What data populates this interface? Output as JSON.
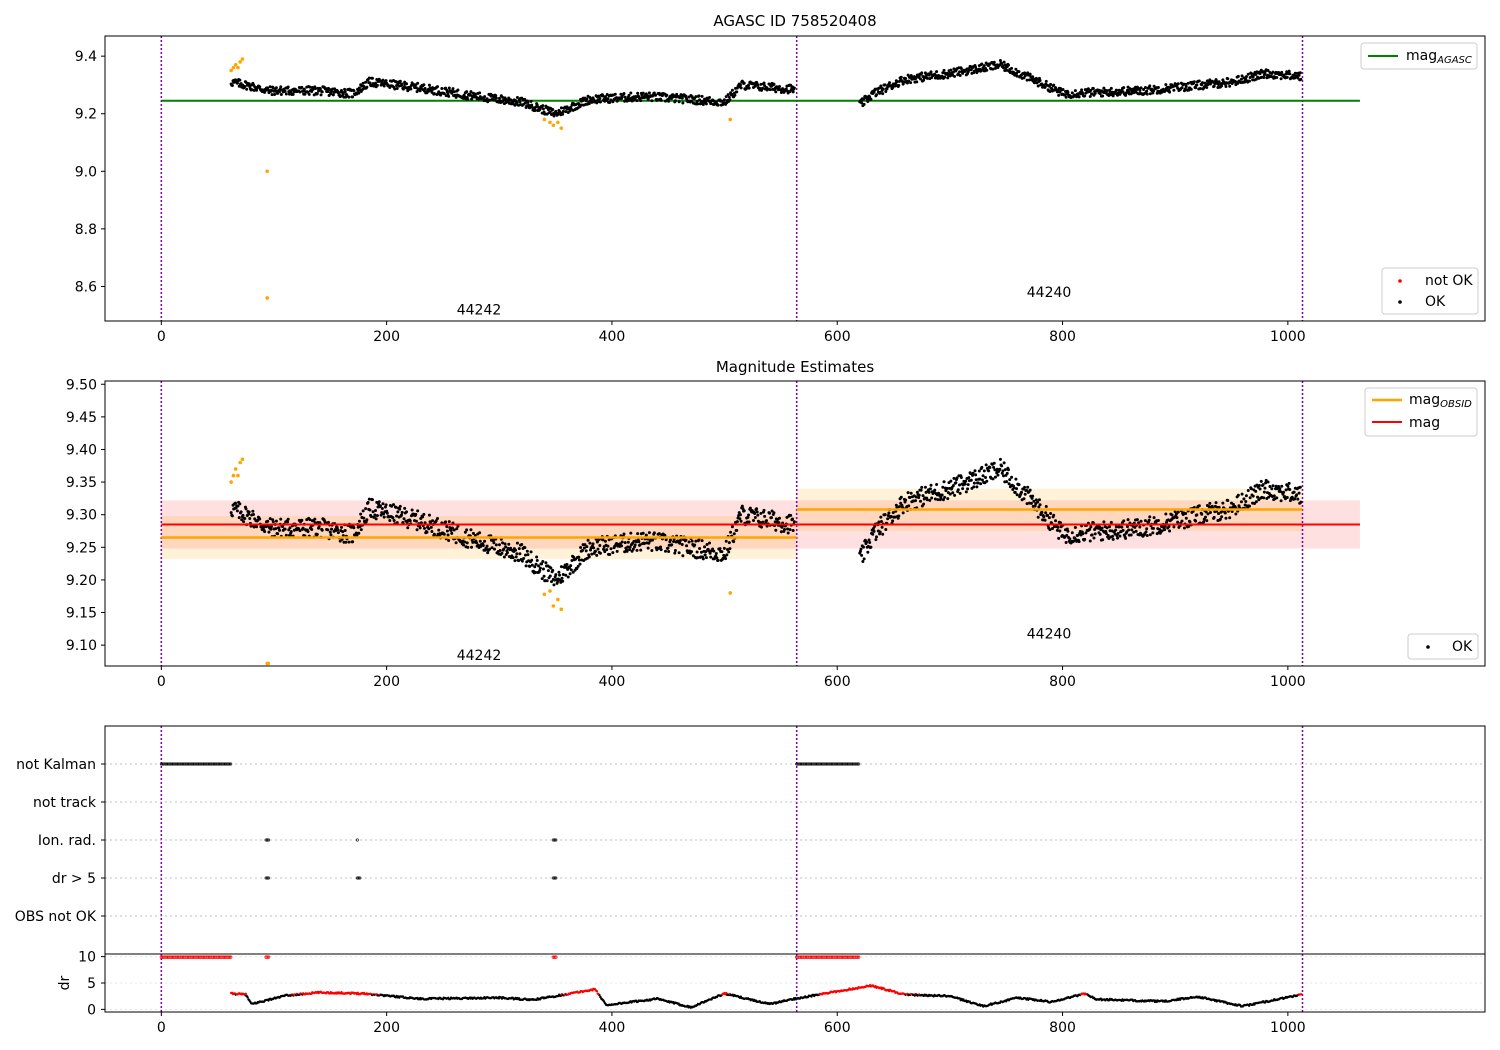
{
  "chart_data": [
    {
      "type": "scatter",
      "title": "AGASC ID 758520408",
      "xlim": [
        -50,
        1175
      ],
      "ylim": [
        8.48,
        9.47
      ],
      "xticks": [
        0,
        200,
        400,
        600,
        800,
        1000
      ],
      "yticks": [
        8.6,
        8.8,
        9.0,
        9.2,
        9.4
      ],
      "obs_boundaries": [
        0,
        564,
        1013
      ],
      "obs_labels": [
        {
          "text": "44242",
          "x": 282,
          "y": 8.52
        },
        {
          "text": "44240",
          "x": 788,
          "y": 8.58
        }
      ],
      "mag_agasc": {
        "value": 9.245,
        "x": [
          0,
          1064
        ],
        "label": "mag",
        "sub": "AGASC"
      },
      "legend_lines_position": "top-right",
      "legend_points_position": "bottom-right",
      "legend_points": [
        "not OK",
        "OK"
      ],
      "segments": [
        {
          "x": [
            62,
            562
          ],
          "anchors": [
            [
              62,
              9.31
            ],
            [
              75,
              9.3
            ],
            [
              95,
              9.28
            ],
            [
              140,
              9.28
            ],
            [
              170,
              9.27
            ],
            [
              185,
              9.31
            ],
            [
              230,
              9.29
            ],
            [
              280,
              9.26
            ],
            [
              320,
              9.24
            ],
            [
              350,
              9.2
            ],
            [
              380,
              9.25
            ],
            [
              430,
              9.26
            ],
            [
              470,
              9.25
            ],
            [
              500,
              9.24
            ],
            [
              515,
              9.3
            ],
            [
              562,
              9.285
            ]
          ]
        },
        {
          "x": [
            620,
            1012
          ],
          "anchors": [
            [
              620,
              9.23
            ],
            [
              632,
              9.27
            ],
            [
              660,
              9.32
            ],
            [
              700,
              9.34
            ],
            [
              745,
              9.37
            ],
            [
              790,
              9.29
            ],
            [
              800,
              9.27
            ],
            [
              870,
              9.28
            ],
            [
              950,
              9.31
            ],
            [
              980,
              9.34
            ],
            [
              1012,
              9.33
            ]
          ]
        }
      ],
      "not_ok_points": [
        [
          62,
          9.35
        ],
        [
          64,
          9.36
        ],
        [
          66,
          9.37
        ],
        [
          68,
          9.36
        ],
        [
          70,
          9.38
        ],
        [
          72,
          9.39
        ],
        [
          94,
          9.0
        ],
        [
          94,
          8.56
        ],
        [
          340,
          9.18
        ],
        [
          345,
          9.17
        ],
        [
          348,
          9.16
        ],
        [
          352,
          9.17
        ],
        [
          355,
          9.15
        ],
        [
          505,
          9.18
        ]
      ]
    },
    {
      "type": "scatter",
      "title": "Magnitude Estimates",
      "xlim": [
        -50,
        1175
      ],
      "ylim": [
        9.068,
        9.505
      ],
      "xticks": [
        0,
        200,
        400,
        600,
        800,
        1000
      ],
      "yticks": [
        9.1,
        9.15,
        9.2,
        9.25,
        9.3,
        9.35,
        9.4,
        9.45,
        9.5
      ],
      "obs_boundaries": [
        0,
        564,
        1013
      ],
      "obs_labels": [
        {
          "text": "44242",
          "x": 282,
          "y": 9.085
        },
        {
          "text": "44240",
          "x": 788,
          "y": 9.118
        }
      ],
      "mag": {
        "value": 9.285,
        "band": [
          9.248,
          9.322
        ],
        "x": [
          0,
          1064
        ],
        "label": "mag"
      },
      "mag_obsid": [
        {
          "value": 9.265,
          "band": [
            9.232,
            9.298
          ],
          "x": [
            0,
            564
          ]
        },
        {
          "value": 9.308,
          "band": [
            9.275,
            9.34
          ],
          "x": [
            564,
            1013
          ]
        }
      ],
      "mag_obsid_label": {
        "label": "mag",
        "sub": "OBSID"
      },
      "legend_lines_position": "top-right",
      "legend_points_position": "bottom-right",
      "legend_points": [
        "OK"
      ],
      "segments": [
        {
          "x": [
            62,
            562
          ],
          "anchors": [
            [
              62,
              9.31
            ],
            [
              75,
              9.3
            ],
            [
              95,
              9.28
            ],
            [
              140,
              9.28
            ],
            [
              170,
              9.27
            ],
            [
              185,
              9.31
            ],
            [
              230,
              9.29
            ],
            [
              280,
              9.26
            ],
            [
              320,
              9.24
            ],
            [
              350,
              9.2
            ],
            [
              380,
              9.25
            ],
            [
              430,
              9.26
            ],
            [
              470,
              9.25
            ],
            [
              500,
              9.24
            ],
            [
              515,
              9.3
            ],
            [
              562,
              9.285
            ]
          ]
        },
        {
          "x": [
            620,
            1012
          ],
          "anchors": [
            [
              620,
              9.23
            ],
            [
              632,
              9.27
            ],
            [
              660,
              9.32
            ],
            [
              700,
              9.34
            ],
            [
              745,
              9.37
            ],
            [
              790,
              9.29
            ],
            [
              800,
              9.27
            ],
            [
              870,
              9.28
            ],
            [
              950,
              9.31
            ],
            [
              980,
              9.34
            ],
            [
              1012,
              9.33
            ]
          ]
        }
      ],
      "not_ok_points": [
        [
          62,
          9.35
        ],
        [
          64,
          9.36
        ],
        [
          66,
          9.37
        ],
        [
          68,
          9.36
        ],
        [
          70,
          9.38
        ],
        [
          72,
          9.385
        ],
        [
          94,
          9.072
        ],
        [
          95,
          9.072
        ],
        [
          340,
          9.178
        ],
        [
          345,
          9.183
        ],
        [
          348,
          9.16
        ],
        [
          352,
          9.17
        ],
        [
          355,
          9.155
        ],
        [
          505,
          9.18
        ]
      ]
    },
    {
      "type": "scatter",
      "xlim": [
        -50,
        1175
      ],
      "categories": [
        "not Kalman",
        "not track",
        "Ion. rad.",
        "dr > 5",
        "OBS not OK"
      ],
      "flags": {
        "not Kalman": [
          [
            0,
            62
          ],
          [
            564,
            620
          ]
        ],
        "not track": [],
        "Ion. rad.": [
          [
            93,
            96
          ],
          [
            174,
            175
          ],
          [
            348,
            351
          ]
        ],
        "dr > 5": [
          [
            93,
            96
          ],
          [
            174,
            177
          ],
          [
            348,
            351
          ]
        ],
        "OBS not OK": []
      },
      "dr_panel": {
        "ylabel": "dr",
        "yticks": [
          0,
          5,
          10
        ],
        "ylim": [
          -0.5,
          10.5
        ],
        "xticks": [
          0,
          200,
          400,
          600,
          800,
          1000
        ],
        "obs_boundaries": [
          0,
          564,
          1013
        ],
        "high_dr": [
          [
            0,
            62
          ],
          [
            564,
            620
          ],
          [
            93,
            96
          ],
          [
            348,
            351
          ]
        ],
        "anchors": [
          [
            62,
            3.0
          ],
          [
            75,
            2.8
          ],
          [
            80,
            1.0
          ],
          [
            110,
            2.6
          ],
          [
            140,
            3.2
          ],
          [
            180,
            3.0
          ],
          [
            230,
            2.0
          ],
          [
            300,
            2.2
          ],
          [
            330,
            1.8
          ],
          [
            385,
            3.8
          ],
          [
            395,
            0.8
          ],
          [
            440,
            2.0
          ],
          [
            470,
            0.4
          ],
          [
            500,
            3.0
          ],
          [
            540,
            1.0
          ],
          [
            562,
            2.0
          ],
          [
            630,
            4.5
          ],
          [
            660,
            2.8
          ],
          [
            700,
            2.5
          ],
          [
            730,
            0.6
          ],
          [
            760,
            2.2
          ],
          [
            790,
            1.4
          ],
          [
            820,
            3.0
          ],
          [
            830,
            1.9
          ],
          [
            890,
            1.5
          ],
          [
            920,
            2.4
          ],
          [
            960,
            0.6
          ],
          [
            1012,
            2.8
          ]
        ]
      }
    }
  ]
}
